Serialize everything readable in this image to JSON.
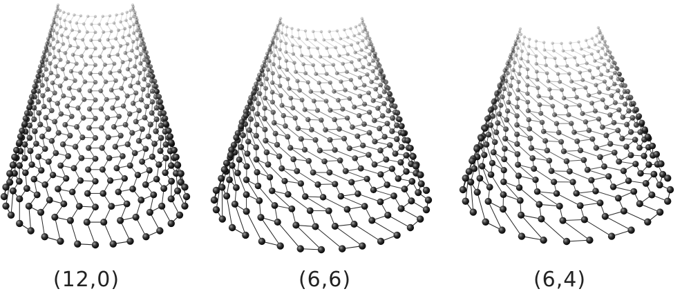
{
  "figure": {
    "panels": [
      {
        "label": "(12,0)",
        "chirality": "zigzag",
        "n": 12,
        "m": 0
      },
      {
        "label": "(6,6)",
        "chirality": "armchair",
        "n": 6,
        "m": 6
      },
      {
        "label": "(6,4)",
        "chirality": "chiral",
        "n": 6,
        "m": 4
      }
    ],
    "colors": {
      "bond": "#222222",
      "atom": "#111111",
      "atom_highlight": "#9a9a9a",
      "background": "#ffffff"
    }
  }
}
